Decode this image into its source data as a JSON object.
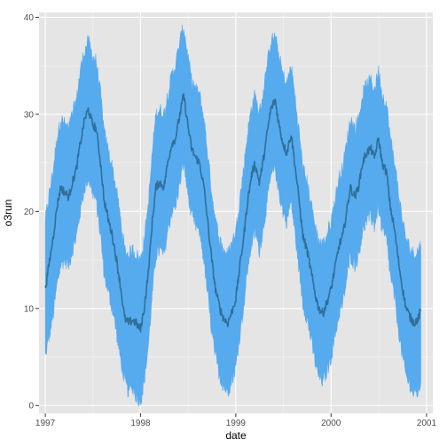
{
  "chart_data": {
    "type": "area",
    "title": "",
    "xlabel": "date",
    "ylabel": "o3run",
    "x_tick_labels": [
      "1997",
      "1998",
      "1999",
      "2000",
      "2001"
    ],
    "x_tick_dates": [
      "1997-01-01",
      "1998-01-01",
      "1999-01-01",
      "2000-01-01",
      "2001-01-01"
    ],
    "y_tick_labels": [
      "0",
      "10",
      "20",
      "30",
      "40"
    ],
    "y_tick_values": [
      0,
      10,
      20,
      30,
      40
    ],
    "xlim": [
      "1996-12-08",
      "2001-01-25"
    ],
    "ylim": [
      -0.8,
      40.5
    ],
    "grid": true,
    "colors": {
      "panel_background": "#e5e5e5",
      "grid_major": "#ffffff",
      "grid_minor": "#f2f2f2",
      "ribbon_fill": "#56aaee",
      "line": "#2f6f9a"
    },
    "series": [
      {
        "kind": "line",
        "points": [
          [
            "1997-01-01",
            12.0
          ],
          [
            "1997-01-15",
            14.5
          ],
          [
            "1997-02-01",
            17.5
          ],
          [
            "1997-02-15",
            20.5
          ],
          [
            "1997-03-01",
            22.5
          ],
          [
            "1997-03-15",
            22.0
          ],
          [
            "1997-04-01",
            21.5
          ],
          [
            "1997-04-15",
            23.0
          ],
          [
            "1997-05-01",
            24.5
          ],
          [
            "1997-05-15",
            27.0
          ],
          [
            "1997-06-01",
            29.5
          ],
          [
            "1997-06-15",
            30.5
          ],
          [
            "1997-07-01",
            29.0
          ],
          [
            "1997-07-15",
            28.5
          ],
          [
            "1997-08-01",
            25.0
          ],
          [
            "1997-08-15",
            21.0
          ],
          [
            "1997-09-01",
            19.0
          ],
          [
            "1997-09-15",
            17.5
          ],
          [
            "1997-10-01",
            15.0
          ],
          [
            "1997-10-15",
            12.5
          ],
          [
            "1997-11-01",
            9.0
          ],
          [
            "1997-11-15",
            8.5
          ],
          [
            "1997-12-01",
            8.8
          ],
          [
            "1997-12-15",
            8.5
          ],
          [
            "1998-01-01",
            7.8
          ],
          [
            "1998-01-15",
            10.0
          ],
          [
            "1998-02-01",
            14.0
          ],
          [
            "1998-02-15",
            19.0
          ],
          [
            "1998-03-01",
            22.5
          ],
          [
            "1998-03-15",
            23.0
          ],
          [
            "1998-04-01",
            22.5
          ],
          [
            "1998-04-15",
            25.0
          ],
          [
            "1998-05-01",
            27.0
          ],
          [
            "1998-05-15",
            27.5
          ],
          [
            "1998-06-01",
            30.0
          ],
          [
            "1998-06-15",
            32.0
          ],
          [
            "1998-07-01",
            29.0
          ],
          [
            "1998-07-15",
            26.5
          ],
          [
            "1998-08-01",
            25.5
          ],
          [
            "1998-08-15",
            25.0
          ],
          [
            "1998-09-01",
            22.5
          ],
          [
            "1998-09-15",
            19.0
          ],
          [
            "1998-10-01",
            15.0
          ],
          [
            "1998-10-15",
            12.0
          ],
          [
            "1998-11-01",
            10.0
          ],
          [
            "1998-11-15",
            9.0
          ],
          [
            "1998-12-01",
            8.5
          ],
          [
            "1998-12-15",
            9.5
          ],
          [
            "1999-01-01",
            11.0
          ],
          [
            "1999-01-15",
            14.0
          ],
          [
            "1999-02-01",
            17.5
          ],
          [
            "1999-02-15",
            21.0
          ],
          [
            "1999-03-01",
            23.5
          ],
          [
            "1999-03-15",
            25.0
          ],
          [
            "1999-04-01",
            23.0
          ],
          [
            "1999-04-15",
            25.0
          ],
          [
            "1999-05-01",
            28.0
          ],
          [
            "1999-05-15",
            30.5
          ],
          [
            "1999-06-01",
            31.5
          ],
          [
            "1999-06-15",
            29.0
          ],
          [
            "1999-07-01",
            27.0
          ],
          [
            "1999-07-15",
            26.0
          ],
          [
            "1999-08-01",
            28.0
          ],
          [
            "1999-08-15",
            25.0
          ],
          [
            "1999-09-01",
            21.0
          ],
          [
            "1999-09-15",
            17.5
          ],
          [
            "1999-10-01",
            16.0
          ],
          [
            "1999-10-15",
            14.0
          ],
          [
            "1999-11-01",
            11.5
          ],
          [
            "1999-11-15",
            10.0
          ],
          [
            "1999-12-01",
            9.5
          ],
          [
            "1999-12-15",
            10.5
          ],
          [
            "2000-01-01",
            12.0
          ],
          [
            "2000-01-15",
            14.0
          ],
          [
            "2000-02-01",
            16.5
          ],
          [
            "2000-02-15",
            17.5
          ],
          [
            "2000-03-01",
            20.0
          ],
          [
            "2000-03-15",
            22.5
          ],
          [
            "2000-04-01",
            21.5
          ],
          [
            "2000-04-15",
            22.5
          ],
          [
            "2000-05-01",
            25.0
          ],
          [
            "2000-05-15",
            26.0
          ],
          [
            "2000-06-01",
            26.5
          ],
          [
            "2000-06-15",
            25.5
          ],
          [
            "2000-07-01",
            27.5
          ],
          [
            "2000-07-15",
            25.0
          ],
          [
            "2000-08-01",
            24.0
          ],
          [
            "2000-08-15",
            20.5
          ],
          [
            "2000-09-01",
            18.0
          ],
          [
            "2000-09-15",
            15.0
          ],
          [
            "2000-10-01",
            12.0
          ],
          [
            "2000-10-15",
            10.0
          ],
          [
            "2000-11-01",
            9.0
          ],
          [
            "2000-11-15",
            8.5
          ],
          [
            "2000-12-01",
            9.0
          ],
          [
            "2000-12-10",
            9.8
          ]
        ]
      },
      {
        "kind": "ribbon",
        "points": [
          [
            "1997-01-01",
            5.0,
            19.0
          ],
          [
            "1997-01-15",
            7.0,
            21.5
          ],
          [
            "1997-02-01",
            9.5,
            24.5
          ],
          [
            "1997-02-15",
            12.5,
            27.5
          ],
          [
            "1997-03-01",
            14.5,
            29.5
          ],
          [
            "1997-03-15",
            15.0,
            29.0
          ],
          [
            "1997-04-01",
            14.5,
            28.5
          ],
          [
            "1997-04-15",
            16.0,
            30.0
          ],
          [
            "1997-05-01",
            17.5,
            31.5
          ],
          [
            "1997-05-15",
            20.0,
            34.5
          ],
          [
            "1997-06-01",
            22.5,
            36.5
          ],
          [
            "1997-06-15",
            23.5,
            37.5
          ],
          [
            "1997-07-01",
            22.0,
            36.0
          ],
          [
            "1997-07-15",
            21.0,
            35.5
          ],
          [
            "1997-08-01",
            17.5,
            32.0
          ],
          [
            "1997-08-15",
            13.5,
            28.0
          ],
          [
            "1997-09-01",
            11.5,
            26.0
          ],
          [
            "1997-09-15",
            10.0,
            24.5
          ],
          [
            "1997-10-01",
            7.5,
            22.0
          ],
          [
            "1997-10-15",
            5.0,
            19.5
          ],
          [
            "1997-11-01",
            2.5,
            16.0
          ],
          [
            "1997-11-15",
            1.5,
            15.5
          ],
          [
            "1997-12-01",
            2.0,
            16.0
          ],
          [
            "1997-12-15",
            1.0,
            15.5
          ],
          [
            "1998-01-01",
            0.5,
            15.0
          ],
          [
            "1998-01-15",
            2.5,
            17.0
          ],
          [
            "1998-02-01",
            6.5,
            21.0
          ],
          [
            "1998-02-15",
            11.5,
            26.0
          ],
          [
            "1998-03-01",
            15.5,
            30.0
          ],
          [
            "1998-03-15",
            16.0,
            30.5
          ],
          [
            "1998-04-01",
            15.5,
            30.0
          ],
          [
            "1998-04-15",
            18.0,
            32.0
          ],
          [
            "1998-05-01",
            20.0,
            34.0
          ],
          [
            "1998-05-15",
            20.5,
            35.0
          ],
          [
            "1998-06-01",
            23.0,
            37.5
          ],
          [
            "1998-06-15",
            25.0,
            39.0
          ],
          [
            "1998-07-01",
            22.0,
            36.0
          ],
          [
            "1998-07-15",
            19.5,
            33.5
          ],
          [
            "1998-08-01",
            18.5,
            32.5
          ],
          [
            "1998-08-15",
            18.0,
            32.0
          ],
          [
            "1998-09-01",
            15.0,
            29.5
          ],
          [
            "1998-09-15",
            11.5,
            26.0
          ],
          [
            "1998-10-01",
            7.5,
            22.0
          ],
          [
            "1998-10-15",
            5.0,
            19.0
          ],
          [
            "1998-11-01",
            3.0,
            17.0
          ],
          [
            "1998-11-15",
            2.0,
            16.0
          ],
          [
            "1998-12-01",
            1.5,
            15.5
          ],
          [
            "1998-12-15",
            2.5,
            16.5
          ],
          [
            "1999-01-01",
            4.0,
            18.0
          ],
          [
            "1999-01-15",
            7.0,
            21.0
          ],
          [
            "1999-02-01",
            10.5,
            24.5
          ],
          [
            "1999-02-15",
            14.0,
            28.0
          ],
          [
            "1999-03-01",
            16.5,
            30.5
          ],
          [
            "1999-03-15",
            18.0,
            32.0
          ],
          [
            "1999-04-01",
            16.0,
            30.0
          ],
          [
            "1999-04-15",
            18.0,
            32.0
          ],
          [
            "1999-05-01",
            21.0,
            35.0
          ],
          [
            "1999-05-15",
            23.5,
            37.5
          ],
          [
            "1999-06-01",
            24.5,
            38.0
          ],
          [
            "1999-06-15",
            22.0,
            36.0
          ],
          [
            "1999-07-01",
            20.0,
            34.0
          ],
          [
            "1999-07-15",
            19.0,
            33.0
          ],
          [
            "1999-08-01",
            21.0,
            35.0
          ],
          [
            "1999-08-15",
            18.0,
            32.0
          ],
          [
            "1999-09-01",
            14.0,
            28.0
          ],
          [
            "1999-09-15",
            10.5,
            24.5
          ],
          [
            "1999-10-01",
            9.0,
            23.0
          ],
          [
            "1999-10-15",
            7.0,
            21.0
          ],
          [
            "1999-11-01",
            4.5,
            18.5
          ],
          [
            "1999-11-15",
            3.0,
            17.0
          ],
          [
            "1999-12-01",
            2.5,
            16.5
          ],
          [
            "1999-12-15",
            3.5,
            17.5
          ],
          [
            "2000-01-01",
            5.0,
            19.0
          ],
          [
            "2000-01-15",
            7.0,
            21.0
          ],
          [
            "2000-02-01",
            9.5,
            23.5
          ],
          [
            "2000-02-15",
            10.5,
            24.5
          ],
          [
            "2000-03-01",
            13.0,
            27.0
          ],
          [
            "2000-03-15",
            15.5,
            29.5
          ],
          [
            "2000-04-01",
            14.5,
            28.5
          ],
          [
            "2000-04-15",
            15.5,
            29.5
          ],
          [
            "2000-05-01",
            18.0,
            32.0
          ],
          [
            "2000-05-15",
            19.0,
            33.0
          ],
          [
            "2000-06-01",
            19.5,
            33.5
          ],
          [
            "2000-06-15",
            18.5,
            32.5
          ],
          [
            "2000-07-01",
            20.5,
            34.5
          ],
          [
            "2000-07-15",
            18.0,
            32.0
          ],
          [
            "2000-08-01",
            17.0,
            31.0
          ],
          [
            "2000-08-15",
            13.5,
            27.5
          ],
          [
            "2000-09-01",
            11.0,
            25.0
          ],
          [
            "2000-09-15",
            8.0,
            22.0
          ],
          [
            "2000-10-01",
            5.0,
            19.0
          ],
          [
            "2000-10-15",
            3.0,
            17.0
          ],
          [
            "2000-11-01",
            2.0,
            16.0
          ],
          [
            "2000-11-15",
            1.0,
            15.5
          ],
          [
            "2000-12-01",
            1.5,
            16.0
          ],
          [
            "2000-12-10",
            2.5,
            16.5
          ]
        ]
      }
    ]
  }
}
